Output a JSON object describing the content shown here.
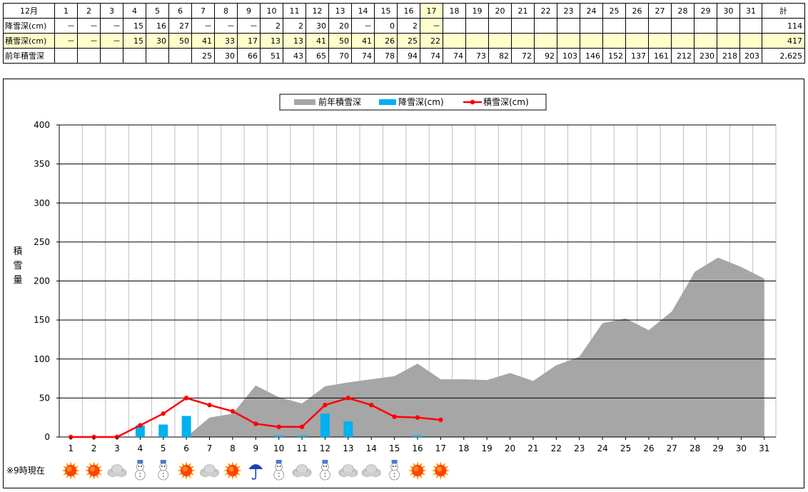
{
  "table": {
    "month_label": "12月",
    "days": [
      "1",
      "2",
      "3",
      "4",
      "5",
      "6",
      "7",
      "8",
      "9",
      "10",
      "11",
      "12",
      "13",
      "14",
      "15",
      "16",
      "17",
      "18",
      "19",
      "20",
      "21",
      "22",
      "23",
      "24",
      "25",
      "26",
      "27",
      "28",
      "29",
      "30",
      "31"
    ],
    "total_header": "計",
    "today_index": 16,
    "rows": [
      {
        "label": "降雪深(cm)",
        "values": [
          "－",
          "－",
          "－",
          "15",
          "16",
          "27",
          "－",
          "－",
          "－",
          "2",
          "2",
          "30",
          "20",
          "－",
          "0",
          "2",
          "－",
          "",
          "",
          "",
          "",
          "",
          "",
          "",
          "",
          "",
          "",
          "",
          "",
          "",
          ""
        ],
        "total": "114",
        "yellow": false
      },
      {
        "label": "積雪深(cm)",
        "values": [
          "－",
          "－",
          "－",
          "15",
          "30",
          "50",
          "41",
          "33",
          "17",
          "13",
          "13",
          "41",
          "50",
          "41",
          "26",
          "25",
          "22",
          "",
          "",
          "",
          "",
          "",
          "",
          "",
          "",
          "",
          "",
          "",
          "",
          "",
          ""
        ],
        "total": "417",
        "yellow": true
      },
      {
        "label": "前年積雪深",
        "values": [
          "",
          "",
          "",
          "",
          "",
          "",
          "25",
          "30",
          "66",
          "51",
          "43",
          "65",
          "70",
          "74",
          "78",
          "94",
          "74",
          "74",
          "73",
          "82",
          "72",
          "92",
          "103",
          "146",
          "152",
          "137",
          "161",
          "212",
          "230",
          "218",
          "203"
        ],
        "total": "2,625",
        "yellow": false
      }
    ]
  },
  "legend": {
    "prev": "前年積雪深",
    "new": "降雪深(cm)",
    "depth": "積雪深(cm)"
  },
  "y_axis_title": "積雪量",
  "weather_note": "※9時現在",
  "weather_icons": [
    "sun",
    "sun",
    "cloud",
    "snowman",
    "snowman",
    "sun",
    "cloud",
    "sun",
    "umbrella",
    "snowman",
    "cloud",
    "snowman",
    "cloud",
    "cloud",
    "snowman",
    "sun",
    "sun"
  ],
  "colors": {
    "prev_area": "#a6a6a6",
    "new_bar": "#00b0f0",
    "depth_line": "#ff0000",
    "grid": "#808080",
    "highlight": "#ffffcc"
  },
  "chart_data": {
    "type": "bar",
    "x": [
      1,
      2,
      3,
      4,
      5,
      6,
      7,
      8,
      9,
      10,
      11,
      12,
      13,
      14,
      15,
      16,
      17,
      18,
      19,
      20,
      21,
      22,
      23,
      24,
      25,
      26,
      27,
      28,
      29,
      30,
      31
    ],
    "ylim": [
      0,
      400
    ],
    "yticks": [
      0,
      50,
      100,
      150,
      200,
      250,
      300,
      350,
      400
    ],
    "ylabel": "積雪量",
    "series": [
      {
        "name": "前年積雪深",
        "kind": "area",
        "values": [
          0,
          0,
          0,
          0,
          0,
          0,
          25,
          30,
          66,
          51,
          43,
          65,
          70,
          74,
          78,
          94,
          74,
          74,
          73,
          82,
          72,
          92,
          103,
          146,
          152,
          137,
          161,
          212,
          230,
          218,
          203
        ]
      },
      {
        "name": "降雪深(cm)",
        "kind": "bar",
        "values": [
          null,
          null,
          null,
          15,
          16,
          27,
          null,
          null,
          null,
          2,
          2,
          30,
          20,
          null,
          0,
          2,
          null,
          null,
          null,
          null,
          null,
          null,
          null,
          null,
          null,
          null,
          null,
          null,
          null,
          null,
          null
        ]
      },
      {
        "name": "積雪深(cm)",
        "kind": "line",
        "values": [
          0,
          0,
          0,
          15,
          30,
          50,
          41,
          33,
          17,
          13,
          13,
          41,
          50,
          41,
          26,
          25,
          22,
          null,
          null,
          null,
          null,
          null,
          null,
          null,
          null,
          null,
          null,
          null,
          null,
          null,
          null
        ]
      }
    ],
    "legend_position": "top"
  }
}
